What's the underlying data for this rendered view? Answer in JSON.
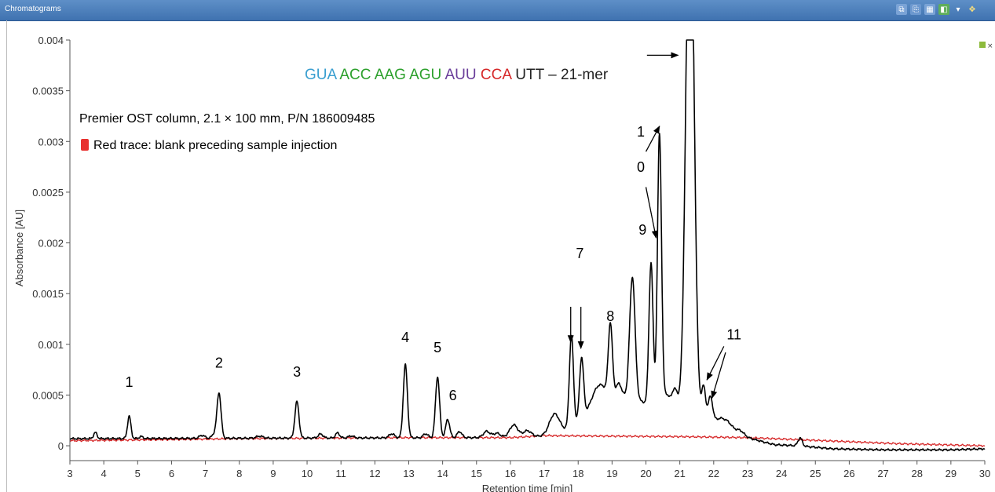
{
  "window": {
    "title": "Chromatograms",
    "toolbar_icons": [
      "copy-icon",
      "export-icon",
      "table-icon",
      "layers-icon",
      "dropdown-icon",
      "pan-icon"
    ],
    "colors": {
      "titlebar": "#4a7fbf"
    }
  },
  "annotations": {
    "column_info": "Premier OST column, 2.1 × 100 mm, P/N 186009485",
    "red_trace_note": "Red trace: blank preceding sample injection",
    "sequence_segments": [
      {
        "text": "GUA ",
        "color": "#3a9fd0"
      },
      {
        "text": "ACC ",
        "color": "#2ca02c"
      },
      {
        "text": "AAG ",
        "color": "#2ca02c"
      },
      {
        "text": "AGU ",
        "color": "#2ca02c"
      },
      {
        "text": "AUU ",
        "color": "#6a3d9a"
      },
      {
        "text": "CCA ",
        "color": "#d62728"
      },
      {
        "text": "UTT – 21-mer",
        "color": "#222222"
      }
    ]
  },
  "chart_data": {
    "type": "line",
    "xlabel": "Retention time [min]",
    "ylabel": "Absorbance [AU]",
    "xlim": [
      3,
      30
    ],
    "ylim": [
      -0.0001,
      0.004
    ],
    "x_ticks": [
      3,
      4,
      5,
      6,
      7,
      8,
      9,
      10,
      11,
      12,
      13,
      14,
      15,
      16,
      17,
      18,
      19,
      20,
      21,
      22,
      23,
      24,
      25,
      26,
      27,
      28,
      29,
      30
    ],
    "y_ticks": [
      {
        "value": 0,
        "label": "0"
      },
      {
        "value": 0.0005,
        "label": "0.0005"
      },
      {
        "value": 0.001,
        "label": "0.001"
      },
      {
        "value": 0.0015,
        "label": "0.0015"
      },
      {
        "value": 0.002,
        "label": "0.002"
      },
      {
        "value": 0.0025,
        "label": "0.0025"
      },
      {
        "value": 0.003,
        "label": "0.003"
      },
      {
        "value": 0.0035,
        "label": "0.0035"
      },
      {
        "value": 0.004,
        "label": "0.004"
      }
    ],
    "grid": false,
    "series": [
      {
        "color": "#000000",
        "peaks": [
          [
            3.75,
            6e-05,
            0.05
          ],
          [
            4.75,
            0.00022,
            0.05
          ],
          [
            5.1,
            2e-05,
            0.05
          ],
          [
            6.9,
            3e-05,
            0.08
          ],
          [
            7.25,
            4e-05,
            0.06
          ],
          [
            7.4,
            0.00045,
            0.06
          ],
          [
            8.6,
            2e-05,
            0.1
          ],
          [
            9.7,
            0.00036,
            0.06
          ],
          [
            10.4,
            4e-05,
            0.07
          ],
          [
            10.9,
            5e-05,
            0.06
          ],
          [
            11.3,
            2e-05,
            0.08
          ],
          [
            12.5,
            4e-05,
            0.08
          ],
          [
            12.9,
            0.00072,
            0.06
          ],
          [
            13.5,
            4e-05,
            0.07
          ],
          [
            13.85,
            0.0006,
            0.06
          ],
          [
            14.15,
            0.00018,
            0.06
          ],
          [
            14.5,
            6e-05,
            0.07
          ],
          [
            15.3,
            6e-05,
            0.1
          ],
          [
            15.6,
            4e-05,
            0.1
          ],
          [
            16.1,
            0.00012,
            0.12
          ],
          [
            16.5,
            6e-05,
            0.12
          ],
          [
            17.3,
            0.0002,
            0.15
          ],
          [
            17.8,
            0.0009,
            0.06
          ],
          [
            18.1,
            0.0006,
            0.06
          ],
          [
            18.6,
            0.00018,
            0.2
          ],
          [
            18.95,
            0.0007,
            0.06
          ],
          [
            19.2,
            0.00012,
            0.08
          ],
          [
            19.6,
            0.0012,
            0.08
          ],
          [
            20.15,
            0.0014,
            0.06
          ],
          [
            20.4,
            0.0027,
            0.06
          ],
          [
            20.6,
            0.00015,
            0.08
          ],
          [
            20.85,
            0.00025,
            0.1
          ],
          [
            21.3,
            0.0055,
            0.12
          ],
          [
            21.7,
            0.00035,
            0.06
          ],
          [
            21.9,
            0.00025,
            0.07
          ],
          [
            22.2,
            3e-05,
            0.1
          ],
          [
            22.4,
            3e-05,
            0.1
          ],
          [
            22.8,
            3e-05,
            0.1
          ],
          [
            24.55,
            8e-05,
            0.06
          ]
        ],
        "baseline": [
          [
            3,
            7e-05
          ],
          [
            15,
            8e-05
          ],
          [
            17,
            9e-05
          ],
          [
            19,
            0.0001
          ],
          [
            22.5,
            9e-05
          ],
          [
            23.3,
            5e-05
          ],
          [
            23.8,
            1e-05
          ],
          [
            24.5,
            0.0
          ],
          [
            25.5,
            -3e-05
          ],
          [
            27,
            -4e-05
          ],
          [
            29,
            -4e-05
          ],
          [
            30,
            -3e-05
          ]
        ],
        "broad_bumps": [
          [
            18.9,
            0.0003,
            0.7
          ],
          [
            20.3,
            0.00025,
            0.9
          ],
          [
            22.2,
            0.00012,
            0.4
          ]
        ]
      },
      {
        "color": "#d62728",
        "peaks": [],
        "baseline": [
          [
            3,
            5e-05
          ],
          [
            8,
            7e-05
          ],
          [
            13,
            8e-05
          ],
          [
            16,
            8e-05
          ],
          [
            17,
            0.0001
          ],
          [
            21,
            9e-05
          ],
          [
            23,
            8e-05
          ],
          [
            24.5,
            6e-05
          ],
          [
            26,
            4e-05
          ],
          [
            27.5,
            2e-05
          ],
          [
            30,
            0.0
          ]
        ],
        "broad_bumps": []
      }
    ],
    "peak_labels": [
      {
        "text": "1",
        "x": 4.75,
        "y": 0.00058
      },
      {
        "text": "2",
        "x": 7.4,
        "y": 0.00077
      },
      {
        "text": "3",
        "x": 9.7,
        "y": 0.00068
      },
      {
        "text": "4",
        "x": 12.9,
        "y": 0.00102
      },
      {
        "text": "5",
        "x": 13.85,
        "y": 0.00092
      },
      {
        "text": "6",
        "x": 14.3,
        "y": 0.00045
      },
      {
        "text": "7",
        "x": 18.05,
        "y": 0.00185
      },
      {
        "text": "8",
        "x": 18.95,
        "y": 0.00123
      },
      {
        "text": "9",
        "x": 19.9,
        "y": 0.00208
      },
      {
        "text": "1",
        "x": 19.85,
        "y": 0.00305
      },
      {
        "text": "0",
        "x": 19.85,
        "y": 0.0027
      },
      {
        "text": "11",
        "x": 22.6,
        "y": 0.00105
      }
    ],
    "arrows": [
      {
        "from": [
          17.78,
          0.00137
        ],
        "to": [
          17.78,
          0.00102
        ]
      },
      {
        "from": [
          18.08,
          0.00137
        ],
        "to": [
          18.08,
          0.00096
        ]
      },
      {
        "from": [
          20.0,
          0.0029
        ],
        "to": [
          20.4,
          0.00315
        ]
      },
      {
        "from": [
          20.0,
          0.00255
        ],
        "to": [
          20.3,
          0.00205
        ]
      },
      {
        "from": [
          22.3,
          0.00098
        ],
        "to": [
          21.8,
          0.00065
        ]
      },
      {
        "from": [
          22.35,
          0.00092
        ],
        "to": [
          21.95,
          0.00047
        ]
      },
      {
        "from": [
          20.03,
          0.00385
        ],
        "to": [
          20.95,
          0.00385
        ]
      }
    ]
  }
}
